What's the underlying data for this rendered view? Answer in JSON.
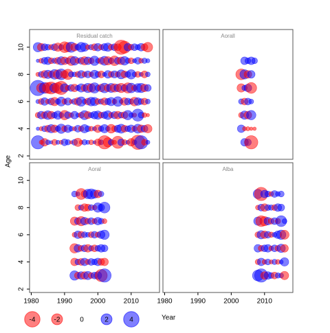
{
  "chart_data": [
    {
      "type": "bubble",
      "title": "Residual catch",
      "x": [
        1982,
        1983,
        1984,
        1985,
        1986,
        1987,
        1988,
        1989,
        1990,
        1991,
        1992,
        1993,
        1994,
        1995,
        1996,
        1997,
        1998,
        1999,
        2000,
        2001,
        2002,
        2003,
        2004,
        2005,
        2006,
        2007,
        2008,
        2009,
        2010,
        2011,
        2012,
        2013,
        2014,
        2015
      ],
      "y": [
        3,
        4,
        5,
        6,
        7,
        8,
        9,
        10
      ],
      "values": [
        [
          3,
          -0.3,
          -1,
          0.4,
          0.2,
          -0.6,
          0.3,
          -0.3,
          0.8,
          0.5,
          -0.2,
          0.6,
          -1.2,
          -0.3,
          0.5,
          0.3,
          -0.4,
          0.2,
          -0.8,
          0.4,
          -3,
          -1.5,
          0.6,
          -0.3,
          -2.5,
          0.8,
          -0.5,
          0.3,
          -1,
          0.4,
          -3.5,
          3,
          -0.6,
          0.3
        ],
        [
          0.2,
          -0.3,
          0.6,
          -0.8,
          1.2,
          -1,
          0.5,
          1.5,
          -0.6,
          1,
          0.4,
          -0.3,
          0.8,
          -0.5,
          1.2,
          0.6,
          -0.4,
          0.3,
          -1,
          0.5,
          1.2,
          0.4,
          -1.3,
          -0.6,
          0.9,
          1.4,
          -0.8,
          0.6,
          1,
          -0.5,
          1.4,
          -1,
          0.8,
          -1.2
        ],
        [
          -0.5,
          1,
          -0.8,
          1.3,
          -1,
          0.6,
          1.2,
          0.5,
          -1.5,
          0.8,
          -0.4,
          1,
          0.3,
          -0.6,
          1.4,
          -0.9,
          0.5,
          1,
          1.2,
          -0.6,
          0.8,
          1.3,
          -0.5,
          0.9,
          -1,
          0.6,
          -0.8,
          1.5,
          0.4,
          -0.3,
          2.5,
          0.6,
          -0.4,
          -0.2
        ],
        [
          0.3,
          -0.6,
          1,
          -0.4,
          0.8,
          -1.2,
          0.5,
          1.4,
          -0.5,
          0.9,
          -0.3,
          0.6,
          -1,
          1.5,
          0.4,
          -0.8,
          1.3,
          1.2,
          -0.6,
          0.5,
          -0.9,
          0.7,
          1.2,
          -0.4,
          1.6,
          0.3,
          -1,
          0.8,
          0.5,
          -1.3,
          1,
          0.6,
          -0.8,
          0.4
        ],
        [
          4,
          -1.5,
          2,
          -2,
          -2.5,
          1.5,
          -2,
          -3,
          1.2,
          -0.5,
          0.8,
          -1,
          0.5,
          1.2,
          -0.8,
          1.5,
          -1.2,
          1.8,
          0.6,
          -1,
          1.6,
          -0.9,
          1.4,
          -1.2,
          1,
          -1.5,
          0.8,
          -1.8,
          1.6,
          -0.6,
          1.3,
          1.5,
          -1,
          0.8
        ],
        [
          -0.3,
          0.6,
          -1,
          1.2,
          -0.8,
          1.6,
          -1.4,
          2,
          -1,
          -1.8,
          0.5,
          0.4,
          -0.6,
          1,
          -0.5,
          0.8,
          -0.4,
          1.2,
          0.6,
          -0.8,
          0.3,
          1,
          -0.6,
          0.9,
          -0.5,
          1.4,
          -0.8,
          0.6,
          1.5,
          0.4,
          -0.6,
          0.3,
          -0.8,
          0.4
        ],
        [
          0.2,
          -0.4,
          0.8,
          1,
          -0.6,
          0.5,
          -0.8,
          1.2,
          -1,
          0.6,
          -1.5,
          1.3,
          -0.5,
          0.8,
          -1.2,
          1,
          -0.6,
          1.5,
          0.4,
          -0.8,
          1.4,
          -1.2,
          0.6,
          -1.6,
          0.8,
          -1,
          1.3,
          0.5,
          -0.6,
          0.3,
          0.8,
          -0.4,
          0.5,
          0.3
        ],
        [
          1.5,
          -1,
          0.8,
          0.6,
          -0.5,
          0.8,
          -1.2,
          0.5,
          -2,
          -1.5,
          1.8,
          -1,
          0.6,
          1.6,
          1.2,
          -0.4,
          0.5,
          -0.8,
          1,
          -0.5,
          0.9,
          1.2,
          -0.6,
          0.8,
          -0.8,
          -3.5,
          -2.5,
          1,
          -0.6,
          0.8,
          0.5,
          1,
          -0.8,
          -1.6
        ]
      ]
    },
    {
      "type": "bubble",
      "title": "Aorall",
      "x": [
        2003,
        2004,
        2005,
        2006,
        2007,
        2008
      ],
      "y": [
        3,
        4,
        5,
        6,
        7,
        8,
        9
      ],
      "values": [
        [
          null,
          1,
          0.8,
          -3,
          null,
          null
        ],
        [
          1,
          -0.3,
          -0.3,
          -0.2,
          -0.2,
          null
        ],
        [
          -0.5,
          1.2,
          -1,
          1.5,
          null,
          null
        ],
        [
          0.5,
          -0.8,
          0.8,
          0.4,
          null,
          null
        ],
        [
          -1.2,
          0.5,
          1,
          -2,
          null,
          null
        ],
        [
          -2,
          1.5,
          -1,
          1,
          null,
          null
        ],
        [
          null,
          1,
          0.6,
          1,
          0.6,
          null
        ]
      ]
    },
    {
      "type": "bubble",
      "title": "Aoral",
      "x": [
        1993,
        1994,
        1995,
        1996,
        1997,
        1998,
        1999,
        2000,
        2001,
        2002
      ],
      "y": [
        3,
        4,
        5,
        6,
        7,
        8,
        9
      ],
      "values": [
        [
          1.5,
          -0.8,
          1,
          -1,
          1.2,
          -0.6,
          0.8,
          1,
          -2.5,
          3
        ],
        [
          -1,
          0.6,
          -0.8,
          1,
          -0.5,
          0.8,
          0.6,
          1,
          -0.8,
          -1
        ],
        [
          -1.5,
          1,
          -0.6,
          0.8,
          -1,
          0.5,
          -0.8,
          0.6,
          1,
          0.8
        ],
        [
          -0.4,
          1,
          -0.8,
          0.6,
          0.4,
          -0.6,
          0.8,
          -0.5,
          1,
          1.5
        ],
        [
          -1.2,
          0.8,
          -1.5,
          1,
          -0.6,
          0.8,
          -0.5,
          1,
          0.6,
          -0.4
        ],
        [
          null,
          -0.6,
          0.5,
          -1,
          -0.8,
          0.6,
          -0.4,
          1.5,
          0.8,
          2
        ],
        [
          0.6,
          0.3,
          -2,
          -0.8,
          1.5,
          1.8,
          1.2,
          -1,
          0.5,
          null
        ]
      ]
    },
    {
      "type": "bubble",
      "title": "Alba",
      "x": [
        2008,
        2009,
        2010,
        2011,
        2012,
        2013,
        2014,
        2015,
        2016
      ],
      "y": [
        3,
        4,
        5,
        6,
        7,
        8,
        9
      ],
      "values": [
        [
          2,
          3,
          -1,
          1,
          0.6,
          -0.8,
          0.5,
          0.4,
          -1.2
        ],
        [
          -0.5,
          1,
          -0.4,
          0.6,
          -0.3,
          0.5,
          -0.4,
          0.3,
          1.2
        ],
        [
          1,
          -0.6,
          0.8,
          1,
          -0.4,
          0.8,
          -0.6,
          1.2,
          -1
        ],
        [
          -0.6,
          1.2,
          -1,
          0.8,
          -0.5,
          0.4,
          1,
          1.5,
          -1.4
        ],
        [
          1.2,
          -2,
          -1.5,
          1,
          -0.6,
          0.8,
          -0.5,
          2,
          0.4
        ],
        [
          -0.4,
          0.8,
          -1,
          0.6,
          0.5,
          -0.6,
          1,
          0.8,
          null
        ],
        [
          1.5,
          -3,
          1,
          0.6,
          -0.4,
          0.8,
          0.4,
          0.6,
          null
        ]
      ]
    }
  ],
  "axes": {
    "xlabel": "Year",
    "ylabel": "Age",
    "xlim": [
      1979.7,
      2018.3
    ],
    "xticks": [
      1980,
      1990,
      2000,
      2010
    ],
    "ylim": [
      1.75,
      11.3
    ],
    "yticks": [
      2,
      4,
      6,
      8,
      10
    ]
  },
  "legend": {
    "values": [
      -4,
      -2,
      0,
      2,
      4
    ]
  },
  "colors": {
    "positive": "#0000ff",
    "negative": "#ff0000"
  }
}
